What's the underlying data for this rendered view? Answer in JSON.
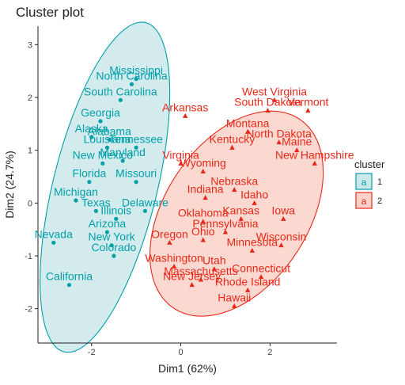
{
  "chart_data": {
    "type": "scatter",
    "title": "Cluster plot",
    "xlabel": "Dim1 (62%)",
    "ylabel": "Dim2 (24.7%)",
    "xlim": [
      -3.2,
      3.5
    ],
    "ylim": [
      -2.65,
      3.35
    ],
    "x_ticks": [
      -2,
      0,
      2
    ],
    "y_ticks": [
      -2,
      -1,
      0,
      1,
      2,
      3
    ],
    "x_tick_labels": [
      "-2",
      "0",
      "2"
    ],
    "y_tick_labels": [
      "-2",
      "-1",
      "0",
      "1",
      "2",
      "3"
    ],
    "grid": false,
    "legend": {
      "title": "cluster",
      "position": "right",
      "entries": [
        {
          "label": "1",
          "glyph": "a",
          "color": "#00A0A8",
          "fill": "#CDE8EB"
        },
        {
          "label": "2",
          "glyph": "a",
          "color": "#E8281A",
          "fill": "#FAD2C8"
        }
      ]
    },
    "series": [
      {
        "name": "1",
        "color": "#00A0A8",
        "fill": "#CDE8EB",
        "marker": "circle",
        "points": [
          {
            "label": "Mississippi",
            "x": -1.0,
            "y": 2.35
          },
          {
            "label": "North Carolina",
            "x": -1.1,
            "y": 2.25
          },
          {
            "label": "South Carolina",
            "x": -1.35,
            "y": 1.95
          },
          {
            "label": "Georgia",
            "x": -1.8,
            "y": 1.55
          },
          {
            "label": "Alaska",
            "x": -2.0,
            "y": 1.25
          },
          {
            "label": "Alabama",
            "x": -1.6,
            "y": 1.2
          },
          {
            "label": "Louisiana",
            "x": -1.65,
            "y": 1.05
          },
          {
            "label": "Tennessee",
            "x": -1.0,
            "y": 1.05
          },
          {
            "label": "New Mexico",
            "x": -1.75,
            "y": 0.75
          },
          {
            "label": "Maryland",
            "x": -1.3,
            "y": 0.8
          },
          {
            "label": "Florida",
            "x": -2.05,
            "y": 0.4
          },
          {
            "label": "Missouri",
            "x": -1.0,
            "y": 0.4
          },
          {
            "label": "Michigan",
            "x": -2.35,
            "y": 0.05
          },
          {
            "label": "Texas",
            "x": -1.9,
            "y": -0.15
          },
          {
            "label": "Illinois",
            "x": -1.45,
            "y": -0.3
          },
          {
            "label": "Arizona",
            "x": -1.65,
            "y": -0.55
          },
          {
            "label": "Nevada",
            "x": -2.85,
            "y": -0.75
          },
          {
            "label": "New York",
            "x": -1.55,
            "y": -0.8
          },
          {
            "label": "Colorado",
            "x": -1.5,
            "y": -1.0
          },
          {
            "label": "California",
            "x": -2.5,
            "y": -1.55
          },
          {
            "label": "Delaware",
            "x": -0.8,
            "y": -0.15
          }
        ]
      },
      {
        "name": "2",
        "color": "#E8281A",
        "fill": "#FAD2C8",
        "marker": "triangle",
        "points": [
          {
            "label": "West Virginia",
            "x": 2.1,
            "y": 1.95
          },
          {
            "label": "South Dakota",
            "x": 1.95,
            "y": 1.75
          },
          {
            "label": "Arkansas",
            "x": 0.1,
            "y": 1.65
          },
          {
            "label": "Vermont",
            "x": 2.85,
            "y": 1.75
          },
          {
            "label": "Montana",
            "x": 1.5,
            "y": 1.35
          },
          {
            "label": "North Dakota",
            "x": 2.2,
            "y": 1.15
          },
          {
            "label": "Kentucky",
            "x": 1.15,
            "y": 1.05
          },
          {
            "label": "Maine",
            "x": 2.6,
            "y": 1.0
          },
          {
            "label": "Virginia",
            "x": 0.0,
            "y": 0.75
          },
          {
            "label": "Wyoming",
            "x": 0.5,
            "y": 0.6
          },
          {
            "label": "New Hampshire",
            "x": 3.0,
            "y": 0.75
          },
          {
            "label": "Indiana",
            "x": 0.55,
            "y": 0.1
          },
          {
            "label": "Nebraska",
            "x": 1.2,
            "y": 0.25
          },
          {
            "label": "Idaho",
            "x": 1.65,
            "y": 0.0
          },
          {
            "label": "Oklahoma",
            "x": 0.5,
            "y": -0.35
          },
          {
            "label": "Kansas",
            "x": 1.35,
            "y": -0.3
          },
          {
            "label": "Iowa",
            "x": 2.3,
            "y": -0.3
          },
          {
            "label": "Pennsylvania",
            "x": 1.0,
            "y": -0.55
          },
          {
            "label": "Wisconsin",
            "x": 2.25,
            "y": -0.8
          },
          {
            "label": "Oregon",
            "x": -0.25,
            "y": -0.75
          },
          {
            "label": "Ohio",
            "x": 0.5,
            "y": -0.7
          },
          {
            "label": "Minnesota",
            "x": 1.6,
            "y": -0.9
          },
          {
            "label": "Washington",
            "x": -0.15,
            "y": -1.2
          },
          {
            "label": "Utah",
            "x": 0.75,
            "y": -1.25
          },
          {
            "label": "Connecticut",
            "x": 1.8,
            "y": -1.4
          },
          {
            "label": "Massachusetts",
            "x": 0.45,
            "y": -1.45
          },
          {
            "label": "Rhode Island",
            "x": 1.5,
            "y": -1.65
          },
          {
            "label": "Hawaii",
            "x": 1.2,
            "y": -1.95
          },
          {
            "label": "New Jersey",
            "x": 0.25,
            "y": -1.55
          }
        ]
      }
    ],
    "ellipses": [
      {
        "cluster": "1",
        "cx": -1.7,
        "cy": 0.3,
        "rx": 3.25,
        "ry": 1.15,
        "angle_deg": 73
      },
      {
        "cluster": "2",
        "cx": 1.25,
        "cy": -0.2,
        "rx": 2.3,
        "ry": 1.5,
        "angle_deg": 45
      }
    ]
  }
}
